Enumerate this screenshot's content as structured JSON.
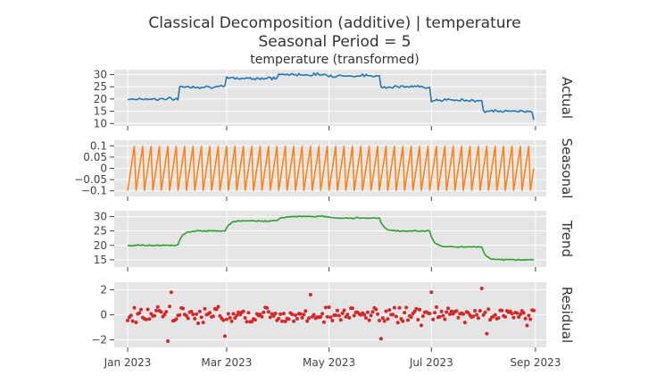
{
  "chart_data": {
    "type": "line",
    "title": {
      "line1": "Classical Decomposition (additive) | temperature",
      "line2": "Seasonal Period = 5",
      "line3": "temperature (transformed)"
    },
    "x_range": [
      "2023-01-01",
      "2023-08-31"
    ],
    "x_ticks": [
      {
        "date": "2023-01-01",
        "label": "Jan 2023"
      },
      {
        "date": "2023-03-01",
        "label": "Mar 2023"
      },
      {
        "date": "2023-05-01",
        "label": "May 2023"
      },
      {
        "date": "2023-07-01",
        "label": "Jul 2023"
      },
      {
        "date": "2023-09-01",
        "label": "Sep 2023"
      }
    ],
    "seasonal_period": 5,
    "level_steps": [
      {
        "start": "2023-01-01",
        "end": "2023-01-31",
        "level": 20
      },
      {
        "start": "2023-02-01",
        "end": "2023-02-28",
        "level": 25
      },
      {
        "start": "2023-03-01",
        "end": "2023-03-31",
        "level": 28.5
      },
      {
        "start": "2023-04-01",
        "end": "2023-04-30",
        "level": 30
      },
      {
        "start": "2023-05-01",
        "end": "2023-05-31",
        "level": 29.5
      },
      {
        "start": "2023-06-01",
        "end": "2023-06-30",
        "level": 25
      },
      {
        "start": "2023-07-01",
        "end": "2023-07-31",
        "level": 19.5
      },
      {
        "start": "2023-08-01",
        "end": "2023-08-31",
        "level": 15
      }
    ],
    "panels": [
      {
        "name": "Actual",
        "label": "Actual",
        "color": "#1f77b4",
        "kind": "line",
        "yrange": [
          9,
          32
        ],
        "ytick_values": [
          10,
          15,
          20,
          25,
          30
        ],
        "ytick_labels": [
          "10",
          "15",
          "20",
          "25",
          "30"
        ],
        "noise_amplitude": 0.6,
        "end_value": 11.5
      },
      {
        "name": "Seasonal",
        "label": "Seasonal",
        "color": "#ff7f0e",
        "kind": "seasonal",
        "yrange": [
          -0.125,
          0.125
        ],
        "ytick_values": [
          -0.1,
          -0.05,
          0,
          0.05,
          0.1
        ],
        "ytick_labels": [
          "−0.1",
          "−0.05",
          "0",
          "0.05",
          "0.1"
        ],
        "pattern": [
          -0.1,
          -0.05,
          0,
          0.05,
          0.1
        ]
      },
      {
        "name": "Trend",
        "label": "Trend",
        "color": "#2ca02c",
        "kind": "line",
        "yrange": [
          12.5,
          32
        ],
        "ytick_values": [
          15,
          20,
          25,
          30
        ],
        "ytick_labels": [
          "15",
          "20",
          "25",
          "30"
        ],
        "noise_amplitude": 0.2
      },
      {
        "name": "Residual",
        "label": "Residual",
        "color": "#d62728",
        "kind": "scatter",
        "yrange": [
          -2.6,
          2.6
        ],
        "ytick_values": [
          -2,
          0,
          2
        ],
        "ytick_labels": [
          "−2",
          "0",
          "2"
        ],
        "noise_amplitude": 0.65,
        "outliers": [
          {
            "date": "2023-01-25",
            "value": -2.1
          },
          {
            "date": "2023-01-27",
            "value": 1.8
          },
          {
            "date": "2023-02-28",
            "value": -1.7
          },
          {
            "date": "2023-04-20",
            "value": 1.6
          },
          {
            "date": "2023-06-01",
            "value": -1.9
          },
          {
            "date": "2023-07-01",
            "value": 1.8
          },
          {
            "date": "2023-07-31",
            "value": 2.1
          },
          {
            "date": "2023-08-03",
            "value": -1.5
          }
        ]
      }
    ]
  }
}
